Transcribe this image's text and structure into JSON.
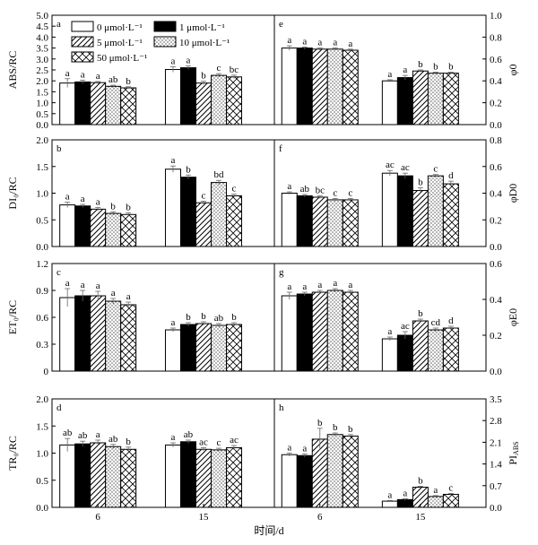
{
  "legend": {
    "items": [
      {
        "label": "0 μmol·L⁻¹",
        "pattern": "white"
      },
      {
        "label": "1 μmol·L⁻¹",
        "pattern": "black"
      },
      {
        "label": "5 μmol·L⁻¹",
        "pattern": "hatch"
      },
      {
        "label": "10 μmol·L⁻¹",
        "pattern": "dots"
      },
      {
        "label": "50 μmol·L⁻¹",
        "pattern": "cross"
      }
    ]
  },
  "x_axis_title": "时间/d",
  "chart_data": [
    {
      "panel": "a",
      "type": "bar",
      "categories": [
        "6",
        "15"
      ],
      "ylabel": "ABS/RC",
      "ylim": [
        0,
        5
      ],
      "yticks": [
        "0.0",
        "0.5",
        "1.0",
        "1.5",
        "2.0",
        "2.5",
        "3.0",
        "3.5",
        "4.0",
        "4.5",
        "5.0"
      ],
      "values": [
        [
          1.9,
          1.95,
          1.92,
          1.75,
          1.68
        ],
        [
          2.52,
          2.6,
          1.9,
          2.25,
          2.18
        ]
      ],
      "errors": [
        [
          0.2,
          0.08,
          0.05,
          0.05,
          0.05
        ],
        [
          0.12,
          0.08,
          0.08,
          0.08,
          0.08
        ]
      ],
      "labels": [
        [
          "a",
          "a",
          "a",
          "ab",
          "b"
        ],
        [
          "a",
          "a",
          "b",
          "c",
          "bc"
        ]
      ]
    },
    {
      "panel": "e",
      "type": "bar",
      "categories": [
        "6",
        "15"
      ],
      "ylabel": "φ0",
      "ylim": [
        0,
        1
      ],
      "yticks": [
        "0.0",
        "0.2",
        "0.4",
        "0.6",
        "0.8",
        "1.0"
      ],
      "values": [
        [
          0.7,
          0.7,
          0.69,
          0.69,
          0.68
        ],
        [
          0.4,
          0.43,
          0.49,
          0.47,
          0.47
        ]
      ],
      "errors": [
        [
          0.02,
          0.01,
          0.01,
          0.01,
          0.01
        ],
        [
          0.01,
          0.02,
          0.01,
          0.01,
          0.01
        ]
      ],
      "labels": [
        [
          "a",
          "a",
          "a",
          "a",
          "a"
        ],
        [
          "a",
          "a",
          "b",
          "b",
          "b"
        ]
      ]
    },
    {
      "panel": "b",
      "type": "bar",
      "categories": [
        "6",
        "15"
      ],
      "ylabel": "DI₀/RC",
      "ylim": [
        0,
        2
      ],
      "yticks": [
        "0.0",
        "0.5",
        "1.0",
        "1.5",
        "2.0"
      ],
      "values": [
        [
          0.78,
          0.76,
          0.7,
          0.62,
          0.6
        ],
        [
          1.45,
          1.3,
          0.82,
          1.2,
          0.95
        ]
      ],
      "errors": [
        [
          0.05,
          0.03,
          0.03,
          0.03,
          0.03
        ],
        [
          0.06,
          0.04,
          0.03,
          0.04,
          0.03
        ]
      ],
      "labels": [
        [
          "a",
          "a",
          "a",
          "b",
          "b"
        ],
        [
          "a",
          "b",
          "c",
          "bd",
          "c"
        ]
      ]
    },
    {
      "panel": "f",
      "type": "bar",
      "categories": [
        "6",
        "15"
      ],
      "ylabel": "φD0",
      "ylim": [
        0,
        0.8
      ],
      "yticks": [
        "0.0",
        "0.2",
        "0.4",
        "0.6",
        "0.8"
      ],
      "values": [
        [
          0.4,
          0.38,
          0.37,
          0.35,
          0.35
        ],
        [
          0.55,
          0.53,
          0.42,
          0.53,
          0.47
        ]
      ],
      "errors": [
        [
          0.01,
          0.01,
          0.01,
          0.01,
          0.01
        ],
        [
          0.02,
          0.02,
          0.02,
          0.01,
          0.02
        ]
      ],
      "labels": [
        [
          "a",
          "ab",
          "bc",
          "c",
          "c"
        ],
        [
          "ac",
          "ac",
          "b",
          "c",
          "d"
        ]
      ]
    },
    {
      "panel": "c",
      "type": "bar",
      "categories": [
        "6",
        "15"
      ],
      "ylabel": "ET₀/RC",
      "ylim": [
        0,
        1.2
      ],
      "yticks": [
        "0",
        "0.3",
        "0.6",
        "0.9",
        "1.2"
      ],
      "values": [
        [
          0.82,
          0.84,
          0.84,
          0.78,
          0.74
        ],
        [
          0.46,
          0.52,
          0.53,
          0.51,
          0.52
        ]
      ],
      "errors": [
        [
          0.1,
          0.06,
          0.05,
          0.03,
          0.03
        ],
        [
          0.02,
          0.02,
          0.02,
          0.02,
          0.02
        ]
      ],
      "labels": [
        [
          "a",
          "a",
          "a",
          "a",
          "a"
        ],
        [
          "a",
          "b",
          "b",
          "ab",
          "b"
        ]
      ]
    },
    {
      "panel": "g",
      "type": "bar",
      "categories": [
        "6",
        "15"
      ],
      "ylabel": "φE0",
      "ylim": [
        0,
        0.6
      ],
      "yticks": [
        "0.0",
        "0.2",
        "0.4",
        "0.6"
      ],
      "values": [
        [
          0.42,
          0.43,
          0.44,
          0.45,
          0.44
        ],
        [
          0.18,
          0.2,
          0.28,
          0.23,
          0.24
        ]
      ],
      "errors": [
        [
          0.02,
          0.01,
          0.01,
          0.01,
          0.01
        ],
        [
          0.01,
          0.02,
          0.01,
          0.01,
          0.01
        ]
      ],
      "labels": [
        [
          "a",
          "a",
          "a",
          "a",
          "a"
        ],
        [
          "a",
          "ac",
          "b",
          "cd",
          "d"
        ]
      ]
    },
    {
      "panel": "d",
      "type": "bar",
      "categories": [
        "6",
        "15"
      ],
      "ylabel": "TR₀/RC",
      "ylim": [
        0,
        2
      ],
      "yticks": [
        "0.0",
        "0.5",
        "1.0",
        "1.5",
        "2.0"
      ],
      "values": [
        [
          1.15,
          1.17,
          1.19,
          1.12,
          1.07
        ],
        [
          1.15,
          1.21,
          1.07,
          1.06,
          1.1
        ]
      ],
      "errors": [
        [
          0.12,
          0.05,
          0.05,
          0.04,
          0.04
        ],
        [
          0.04,
          0.03,
          0.03,
          0.03,
          0.04
        ]
      ],
      "labels": [
        [
          "ab",
          "ab",
          "a",
          "ab",
          "b"
        ],
        [
          "a",
          "ab",
          "ac",
          "c",
          "ac"
        ]
      ]
    },
    {
      "panel": "h",
      "type": "bar",
      "categories": [
        "6",
        "15"
      ],
      "ylabel": "PI_ABS",
      "ylim": [
        0,
        3.5
      ],
      "yticks": [
        "0.0",
        "0.7",
        "1.4",
        "2.1",
        "2.8",
        "3.5"
      ],
      "values": [
        [
          1.7,
          1.67,
          2.2,
          2.35,
          2.3
        ],
        [
          0.2,
          0.25,
          0.65,
          0.35,
          0.42
        ]
      ],
      "errors": [
        [
          0.05,
          0.05,
          0.35,
          0.05,
          0.05
        ],
        [
          0.02,
          0.03,
          0.03,
          0.03,
          0.03
        ]
      ],
      "labels": [
        [
          "a",
          "a",
          "b",
          "b",
          "b"
        ],
        [
          "a",
          "a",
          "b",
          "a",
          "c"
        ]
      ]
    }
  ]
}
